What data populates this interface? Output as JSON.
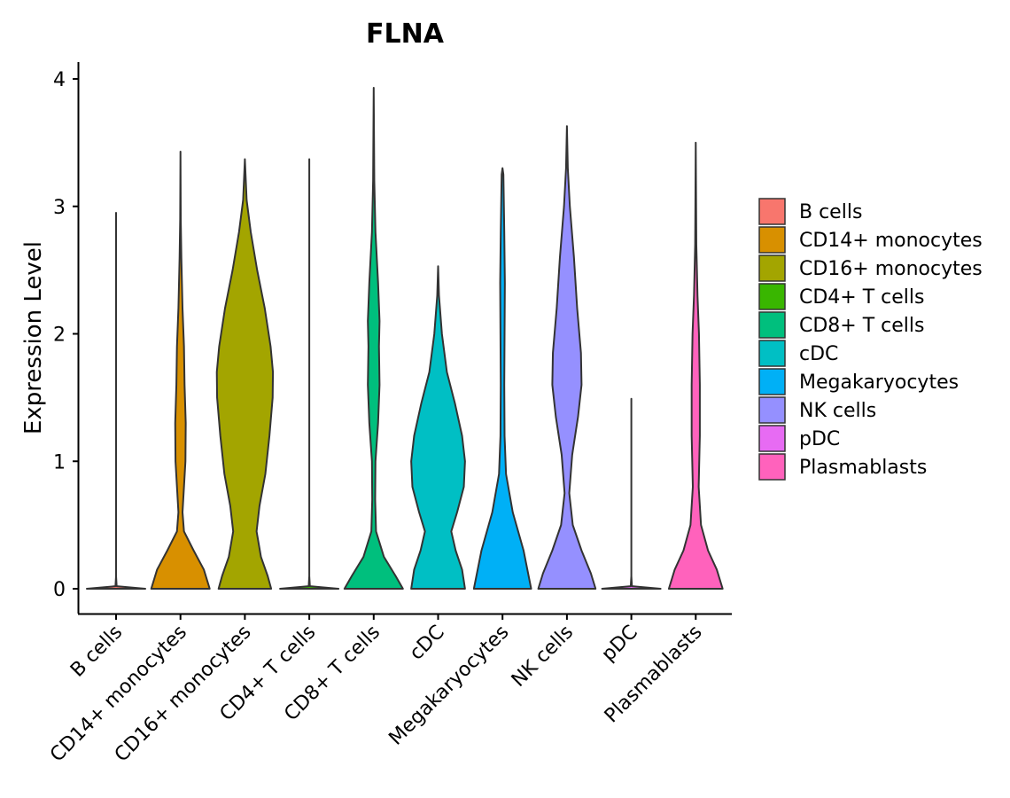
{
  "chart_data": {
    "type": "violin",
    "title": "FLNA",
    "xlabel": "",
    "ylabel": "Expression Level",
    "ylim": [
      0,
      4
    ],
    "yticks": [
      "0",
      "1",
      "2",
      "3",
      "4"
    ],
    "legend_position": "right",
    "categories": [
      "B cells",
      "CD14+ monocytes",
      "CD16+ monocytes",
      "CD4+ T cells",
      "CD8+ T cells",
      "cDC",
      "Megakaryocytes",
      "NK cells",
      "pDC",
      "Plasmablasts"
    ],
    "colors": [
      "#F8766D",
      "#D89000",
      "#A3A500",
      "#39B600",
      "#00BF7D",
      "#00BFC4",
      "#00B0F6",
      "#9590FF",
      "#E76BF3",
      "#FF62BC"
    ],
    "violins": [
      {
        "name": "B cells",
        "max": 2.95,
        "profile": [
          [
            0,
            1
          ],
          [
            0.02,
            0.02
          ],
          [
            0.1,
            0.0
          ],
          [
            2.95,
            0.0
          ]
        ]
      },
      {
        "name": "CD14+ monocytes",
        "max": 3.43,
        "profile": [
          [
            0,
            1.0
          ],
          [
            0.15,
            0.8
          ],
          [
            0.3,
            0.45
          ],
          [
            0.45,
            0.12
          ],
          [
            0.6,
            0.07
          ],
          [
            0.8,
            0.12
          ],
          [
            1.0,
            0.17
          ],
          [
            1.3,
            0.18
          ],
          [
            1.6,
            0.14
          ],
          [
            1.9,
            0.12
          ],
          [
            2.2,
            0.07
          ],
          [
            2.6,
            0.03
          ],
          [
            2.9,
            0.01
          ],
          [
            3.43,
            0.0
          ]
        ]
      },
      {
        "name": "CD16+ monocytes",
        "max": 3.37,
        "profile": [
          [
            0,
            0.9
          ],
          [
            0.1,
            0.78
          ],
          [
            0.25,
            0.55
          ],
          [
            0.45,
            0.4
          ],
          [
            0.65,
            0.5
          ],
          [
            0.9,
            0.7
          ],
          [
            1.2,
            0.84
          ],
          [
            1.5,
            0.95
          ],
          [
            1.7,
            0.96
          ],
          [
            1.9,
            0.88
          ],
          [
            2.2,
            0.68
          ],
          [
            2.5,
            0.42
          ],
          [
            2.8,
            0.2
          ],
          [
            3.05,
            0.06
          ],
          [
            3.37,
            0.0
          ]
        ]
      },
      {
        "name": "CD4+ T cells",
        "max": 3.37,
        "profile": [
          [
            0,
            1
          ],
          [
            0.02,
            0.02
          ],
          [
            0.1,
            0.0
          ],
          [
            3.37,
            0.0
          ]
        ]
      },
      {
        "name": "CD8+ T cells",
        "max": 3.93,
        "profile": [
          [
            0,
            1.0
          ],
          [
            0.1,
            0.75
          ],
          [
            0.25,
            0.35
          ],
          [
            0.45,
            0.08
          ],
          [
            0.7,
            0.05
          ],
          [
            1.0,
            0.06
          ],
          [
            1.3,
            0.15
          ],
          [
            1.6,
            0.2
          ],
          [
            1.9,
            0.18
          ],
          [
            2.1,
            0.2
          ],
          [
            2.4,
            0.15
          ],
          [
            2.8,
            0.06
          ],
          [
            3.2,
            0.02
          ],
          [
            3.93,
            0.0
          ]
        ]
      },
      {
        "name": "cDC",
        "max": 2.53,
        "profile": [
          [
            0,
            0.92
          ],
          [
            0.15,
            0.82
          ],
          [
            0.3,
            0.6
          ],
          [
            0.45,
            0.45
          ],
          [
            0.6,
            0.65
          ],
          [
            0.8,
            0.88
          ],
          [
            1.0,
            0.92
          ],
          [
            1.2,
            0.82
          ],
          [
            1.45,
            0.58
          ],
          [
            1.7,
            0.3
          ],
          [
            2.0,
            0.13
          ],
          [
            2.3,
            0.03
          ],
          [
            2.53,
            0.0
          ]
        ]
      },
      {
        "name": "Megakaryocytes",
        "max": 3.3,
        "profile": [
          [
            0,
            0.98
          ],
          [
            0.3,
            0.72
          ],
          [
            0.6,
            0.35
          ],
          [
            0.9,
            0.12
          ],
          [
            1.2,
            0.07
          ],
          [
            1.6,
            0.06
          ],
          [
            2.0,
            0.07
          ],
          [
            2.4,
            0.08
          ],
          [
            2.8,
            0.06
          ],
          [
            3.25,
            0.03
          ],
          [
            3.3,
            0.0
          ]
        ]
      },
      {
        "name": "NK cells",
        "max": 3.63,
        "profile": [
          [
            0,
            0.98
          ],
          [
            0.12,
            0.82
          ],
          [
            0.3,
            0.5
          ],
          [
            0.5,
            0.2
          ],
          [
            0.75,
            0.08
          ],
          [
            1.05,
            0.18
          ],
          [
            1.35,
            0.38
          ],
          [
            1.6,
            0.5
          ],
          [
            1.85,
            0.48
          ],
          [
            2.2,
            0.35
          ],
          [
            2.6,
            0.24
          ],
          [
            3.0,
            0.1
          ],
          [
            3.3,
            0.03
          ],
          [
            3.63,
            0.0
          ]
        ]
      },
      {
        "name": "pDC",
        "max": 1.49,
        "profile": [
          [
            0,
            1
          ],
          [
            0.02,
            0.02
          ],
          [
            0.1,
            0.0
          ],
          [
            1.49,
            0.0
          ]
        ]
      },
      {
        "name": "Plasmablasts",
        "max": 3.5,
        "profile": [
          [
            0,
            0.92
          ],
          [
            0.15,
            0.72
          ],
          [
            0.3,
            0.42
          ],
          [
            0.5,
            0.18
          ],
          [
            0.8,
            0.1
          ],
          [
            1.2,
            0.14
          ],
          [
            1.6,
            0.14
          ],
          [
            2.0,
            0.11
          ],
          [
            2.3,
            0.06
          ],
          [
            2.7,
            0.02
          ],
          [
            3.1,
            0.01
          ],
          [
            3.5,
            0.0
          ]
        ]
      }
    ]
  }
}
